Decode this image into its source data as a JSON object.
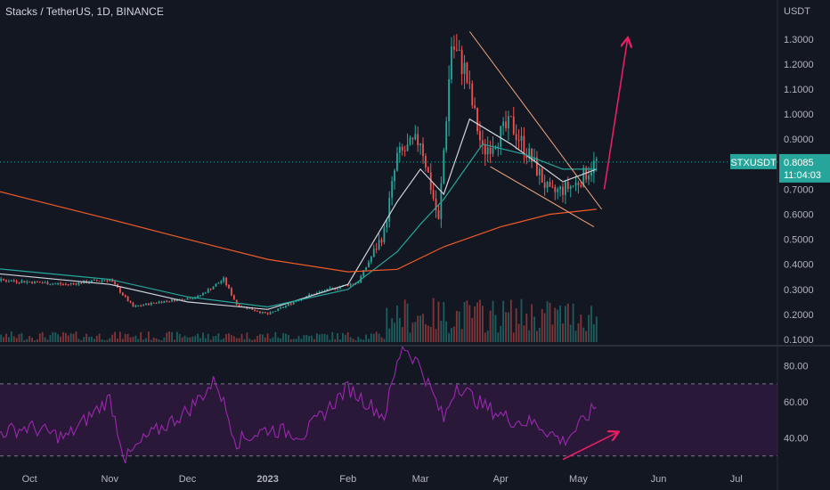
{
  "title": "Stacks / TetherUS, 1D, BINANCE",
  "colors": {
    "background": "#131722",
    "up": "#26a69a",
    "down": "#ef5350",
    "ema_fast": "#d1d4dc",
    "ema_mid": "#26a69a",
    "ema_slow": "#f05a28",
    "rsi_line": "#9c27b0",
    "rsi_band": "#2a1838",
    "annotation": "#e91e63",
    "wedge": "#f5a67a",
    "price_tag": "#26a69a"
  },
  "chart_data": [
    {
      "type": "candlestick",
      "title": "Stacks / TetherUS, 1D, BINANCE",
      "currency": "USDT",
      "symbol": "STXUSDT",
      "last_price": "0.8085",
      "countdown": "11:04:03",
      "x_ticks": [
        "Oct",
        "Nov",
        "Dec",
        "2023",
        "Feb",
        "Mar",
        "Apr",
        "May",
        "Jun",
        "Jul"
      ],
      "y_ticks": [
        "1.3000",
        "1.2000",
        "1.1000",
        "1.0000",
        "0.9000",
        "0.7000",
        "0.6000",
        "0.5000",
        "0.4000",
        "0.3000",
        "0.2000",
        "0.1000"
      ],
      "ylim": [
        0.1,
        1.3
      ],
      "grid": true,
      "series": [
        {
          "name": "close",
          "x": [
            "2022-09-01",
            "2022-09-15",
            "2022-10-01",
            "2022-10-15",
            "2022-11-01",
            "2022-11-10",
            "2022-11-20",
            "2022-12-05",
            "2022-12-15",
            "2022-12-20",
            "2023-01-01",
            "2023-01-15",
            "2023-01-25",
            "2023-02-05",
            "2023-02-15",
            "2023-02-20",
            "2023-03-01",
            "2023-03-08",
            "2023-03-13",
            "2023-03-18",
            "2023-03-25",
            "2023-04-05",
            "2023-04-15",
            "2023-04-20",
            "2023-04-30",
            "2023-05-08"
          ],
          "values": [
            0.38,
            0.34,
            0.33,
            0.32,
            0.34,
            0.23,
            0.25,
            0.27,
            0.34,
            0.24,
            0.2,
            0.27,
            0.3,
            0.33,
            0.53,
            0.83,
            0.9,
            0.57,
            1.28,
            1.18,
            0.85,
            0.96,
            0.78,
            0.68,
            0.72,
            0.81
          ]
        },
        {
          "name": "ema_fast",
          "x": [
            "2022-09-01",
            "2022-11-01",
            "2022-12-01",
            "2023-01-01",
            "2023-02-01",
            "2023-02-20",
            "2023-03-01",
            "2023-03-10",
            "2023-03-20",
            "2023-04-05",
            "2023-04-25",
            "2023-05-08"
          ],
          "values": [
            0.38,
            0.32,
            0.25,
            0.22,
            0.32,
            0.65,
            0.78,
            0.68,
            0.98,
            0.88,
            0.73,
            0.78
          ]
        },
        {
          "name": "ema_mid",
          "x": [
            "2022-09-01",
            "2022-11-01",
            "2022-12-01",
            "2023-01-01",
            "2023-02-01",
            "2023-02-20",
            "2023-03-01",
            "2023-03-10",
            "2023-03-25",
            "2023-04-10",
            "2023-04-25",
            "2023-05-08"
          ],
          "values": [
            0.4,
            0.34,
            0.27,
            0.23,
            0.3,
            0.45,
            0.56,
            0.66,
            0.88,
            0.84,
            0.78,
            0.78
          ]
        },
        {
          "name": "ema_slow",
          "x": [
            "2022-09-01",
            "2022-10-01",
            "2022-11-01",
            "2022-12-01",
            "2023-01-01",
            "2023-02-01",
            "2023-02-20",
            "2023-03-10",
            "2023-04-01",
            "2023-04-20",
            "2023-05-08"
          ],
          "values": [
            0.74,
            0.66,
            0.58,
            0.5,
            0.42,
            0.37,
            0.38,
            0.47,
            0.55,
            0.6,
            0.62
          ]
        }
      ],
      "volume": [
        {
          "x": "2023-03-01",
          "value": 0.32
        },
        {
          "x": "2023-03-20",
          "value": 0.25
        }
      ]
    },
    {
      "type": "line",
      "title": "",
      "y_ticks": [
        "80.00",
        "60.00",
        "40.00"
      ],
      "ylim": [
        27,
        95
      ],
      "overbought": 70,
      "oversold": 30,
      "series": [
        {
          "x": [
            "2022-09-01",
            "2022-09-15",
            "2022-10-01",
            "2022-10-15",
            "2022-11-01",
            "2022-11-07",
            "2022-11-15",
            "2022-12-01",
            "2022-12-12",
            "2022-12-20",
            "2023-01-01",
            "2023-01-15",
            "2023-02-01",
            "2023-02-15",
            "2023-02-22",
            "2023-03-01",
            "2023-03-10",
            "2023-03-15",
            "2023-03-25",
            "2023-04-05",
            "2023-04-15",
            "2023-04-25",
            "2023-05-01",
            "2023-05-08"
          ],
          "values": [
            48,
            42,
            46,
            40,
            62,
            28,
            40,
            55,
            72,
            38,
            45,
            42,
            68,
            52,
            92,
            80,
            50,
            70,
            58,
            50,
            48,
            38,
            46,
            58
          ]
        }
      ]
    }
  ],
  "annotations": [
    {
      "type": "arrow",
      "from": {
        "x": "2023-05-11",
        "y": 0.7
      },
      "to": {
        "x": "2023-05-20",
        "y": 1.3
      }
    },
    {
      "type": "arrow",
      "from": {
        "x": "2023-04-25",
        "rsi": 28
      },
      "to": {
        "x": "2023-05-16",
        "rsi": 43
      }
    },
    {
      "type": "wedge",
      "upper": [
        {
          "x": "2023-03-20",
          "y": 1.33
        },
        {
          "x": "2023-05-10",
          "y": 0.62
        }
      ],
      "lower": [
        {
          "x": "2023-03-28",
          "y": 0.79
        },
        {
          "x": "2023-05-07",
          "y": 0.55
        }
      ]
    }
  ]
}
